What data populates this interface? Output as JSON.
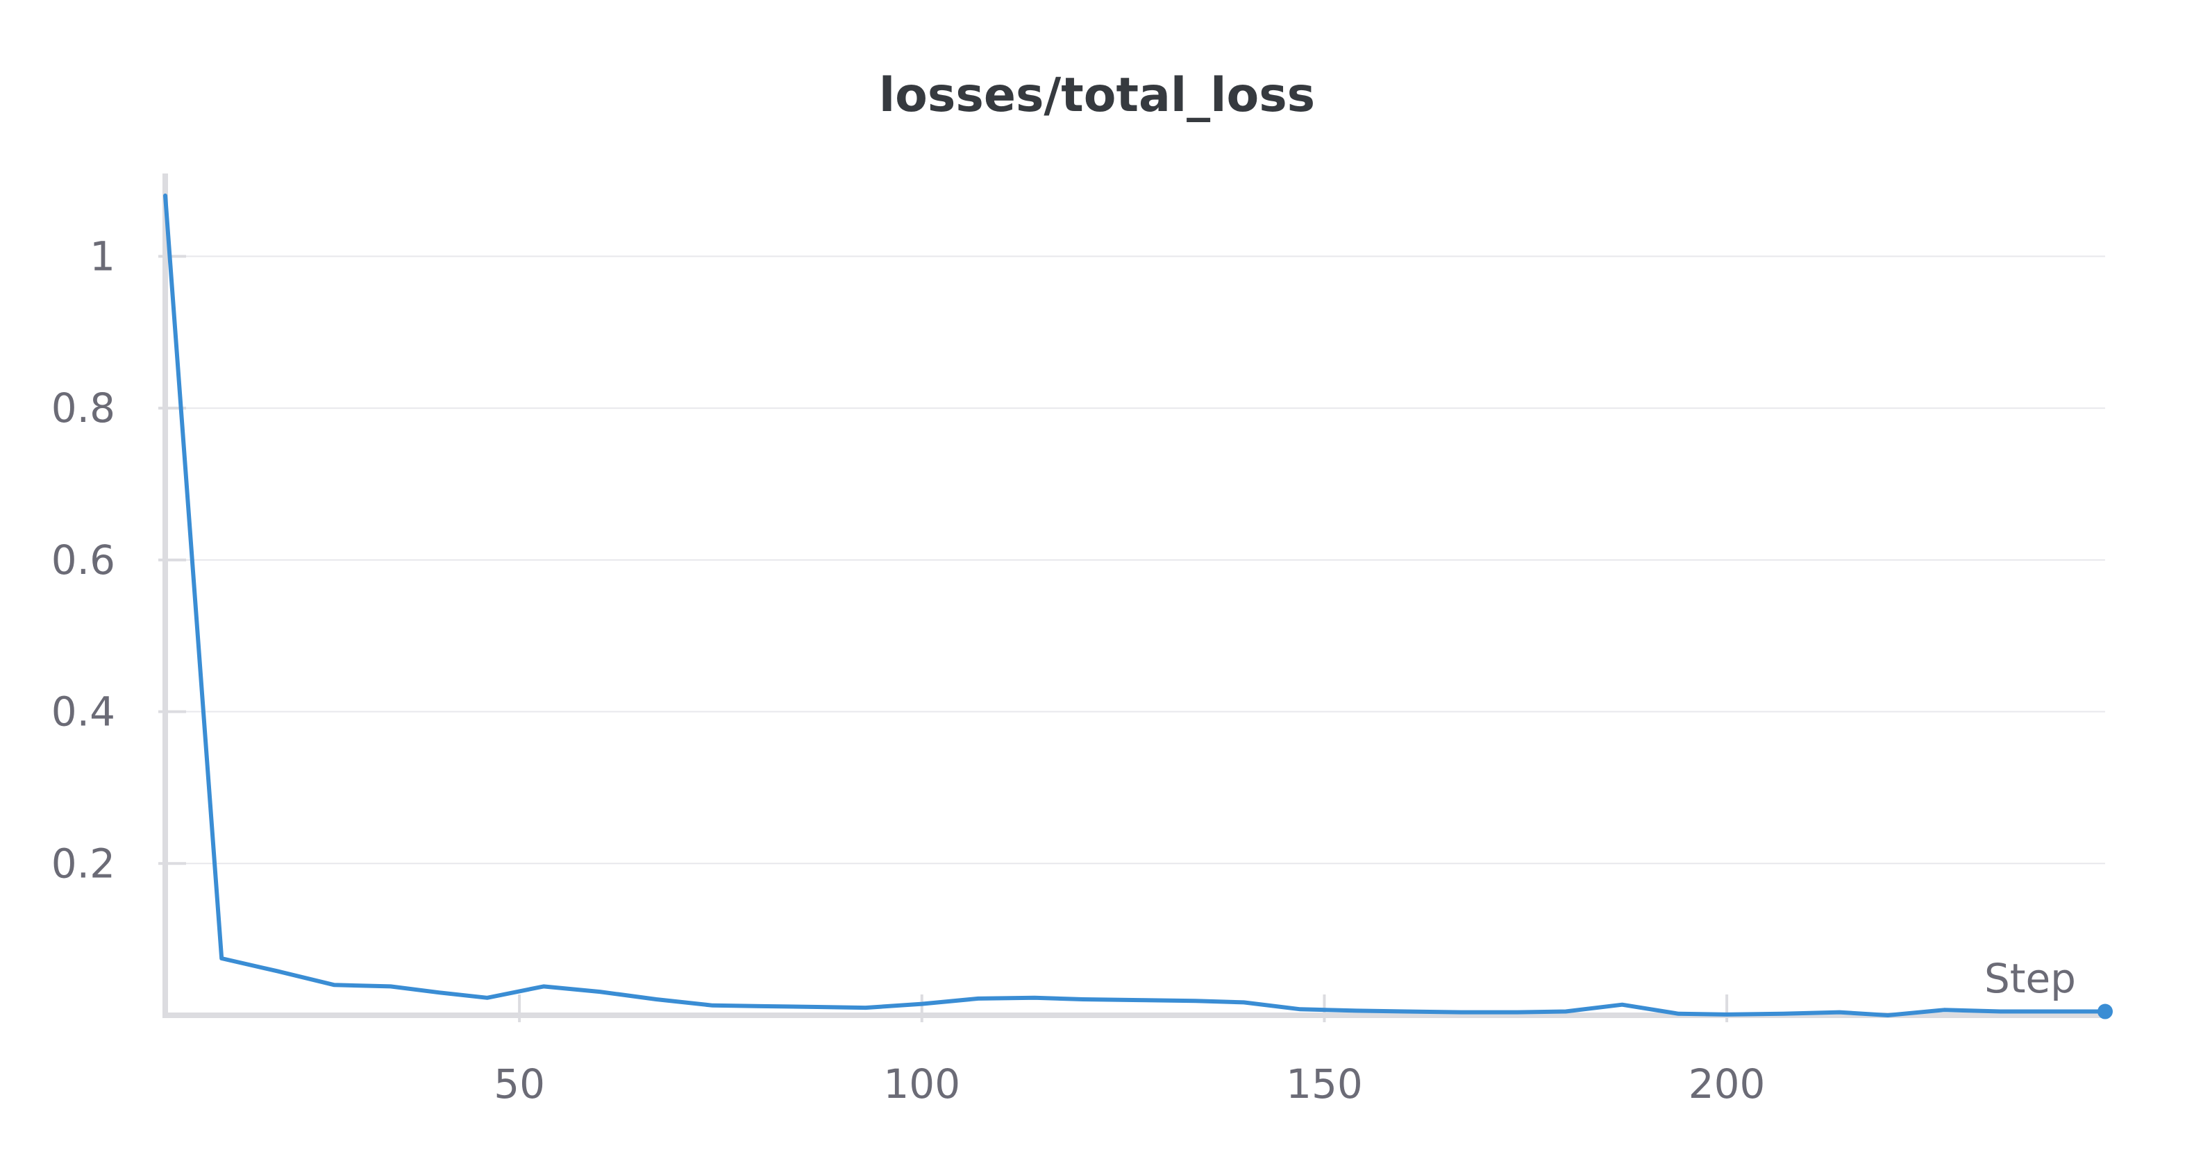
{
  "chart_data": {
    "type": "line",
    "title": "losses/total_loss",
    "xlabel": "Step",
    "ylabel": "",
    "xlim": [
      6,
      247
    ],
    "ylim": [
      0,
      1.1
    ],
    "x_ticks": [
      50,
      100,
      150,
      200
    ],
    "y_ticks": [
      0.2,
      0.4,
      0.6,
      0.8,
      1
    ],
    "y_tick_labels": [
      "0.2",
      "0.4",
      "0.6",
      "0.8",
      "1"
    ],
    "grid": true,
    "series": [
      {
        "color": "#3a8dd4",
        "x": [
          6,
          13,
          20,
          27,
          34,
          40,
          46,
          53,
          60,
          67,
          74,
          80,
          87,
          93,
          100,
          107,
          114,
          120,
          127,
          134,
          140,
          147,
          154,
          160,
          167,
          174,
          180,
          187,
          194,
          200,
          207,
          214,
          220,
          227,
          234,
          240,
          247
        ],
        "values": [
          1.08,
          0.075,
          0.058,
          0.04,
          0.038,
          0.03,
          0.023,
          0.038,
          0.031,
          0.021,
          0.013,
          0.012,
          0.011,
          0.01,
          0.015,
          0.022,
          0.023,
          0.021,
          0.02,
          0.019,
          0.017,
          0.008,
          0.006,
          0.005,
          0.004,
          0.004,
          0.005,
          0.014,
          0.002,
          0.001,
          0.002,
          0.004,
          0.0,
          0.007,
          0.005,
          0.005,
          0.005
        ]
      }
    ]
  }
}
